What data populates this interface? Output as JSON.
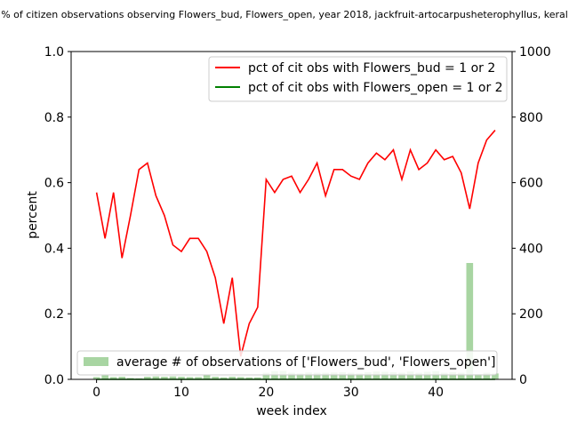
{
  "chart_data": {
    "type": "line",
    "title": "% of citizen observations observing Flowers_bud, Flowers_open, year 2018, jackfruit-artocarpusheterophyllus, keral",
    "xlabel": "week index",
    "ylabel": "percent",
    "xlim": [
      -3,
      49
    ],
    "ylim": [
      0,
      1
    ],
    "y2lim": [
      0,
      1000
    ],
    "xticks": [
      0,
      10,
      20,
      30,
      40
    ],
    "yticks": [
      0.0,
      0.2,
      0.4,
      0.6,
      0.8,
      1.0
    ],
    "y2ticks": [
      0,
      200,
      400,
      600,
      800,
      1000
    ],
    "xtick_labels": [
      "0",
      "10",
      "20",
      "30",
      "40"
    ],
    "ytick_labels": [
      "0.0",
      "0.2",
      "0.4",
      "0.6",
      "0.8",
      "1.0"
    ],
    "y2tick_labels": [
      "0",
      "200",
      "400",
      "600",
      "800",
      "1000"
    ],
    "x": [
      0,
      1,
      2,
      3,
      4,
      5,
      6,
      7,
      8,
      9,
      10,
      11,
      12,
      13,
      14,
      15,
      16,
      17,
      18,
      19,
      20,
      21,
      22,
      23,
      24,
      25,
      26,
      27,
      28,
      29,
      30,
      31,
      32,
      33,
      34,
      35,
      36,
      37,
      38,
      39,
      40,
      41,
      42,
      43,
      44,
      45,
      46,
      47
    ],
    "series": [
      {
        "name": "pct of cit obs with Flowers_bud = 1 or 2",
        "color": "#ff0000",
        "values": [
          0.57,
          0.43,
          0.57,
          0.37,
          0.5,
          0.64,
          0.66,
          0.56,
          0.5,
          0.41,
          0.39,
          0.43,
          0.43,
          0.39,
          0.31,
          0.17,
          0.31,
          0.07,
          0.17,
          0.22,
          0.61,
          0.57,
          0.61,
          0.62,
          0.57,
          0.61,
          0.66,
          0.56,
          0.64,
          0.64,
          0.62,
          0.61,
          0.66,
          0.69,
          0.67,
          0.7,
          0.61,
          0.7,
          0.64,
          0.66,
          0.7,
          0.67,
          0.68,
          0.63,
          0.52,
          0.66,
          0.73,
          0.76
        ]
      },
      {
        "name": "pct of cit obs with Flowers_open = 1 or 2",
        "color": "#008000",
        "values": [
          0,
          0,
          0,
          0,
          0,
          0,
          0,
          0,
          0,
          0,
          0,
          0,
          0,
          0,
          0,
          0,
          0,
          0,
          0,
          0,
          0,
          0,
          0,
          0,
          0,
          0,
          0,
          0,
          0,
          0,
          0,
          0,
          0,
          0,
          0,
          0,
          0,
          0,
          0,
          0,
          0,
          0,
          0,
          0,
          0,
          0,
          0,
          0
        ]
      }
    ],
    "bar_series": {
      "name": "average # of observations of ['Flowers_bud', 'Flowers_open']",
      "color": "#a8d5a2",
      "axis": "right",
      "values": [
        7,
        12,
        7,
        8,
        4,
        3,
        8,
        9,
        8,
        9,
        8,
        7,
        7,
        13,
        8,
        6,
        8,
        7,
        6,
        6,
        20,
        25,
        26,
        20,
        18,
        21,
        20,
        20,
        21,
        22,
        20,
        18,
        22,
        24,
        23,
        22,
        20,
        24,
        20,
        23,
        25,
        20,
        22,
        20,
        355,
        16,
        20,
        18
      ]
    },
    "legend_placement": "upper right",
    "bar_legend_placement": "lower left",
    "grid": false
  }
}
